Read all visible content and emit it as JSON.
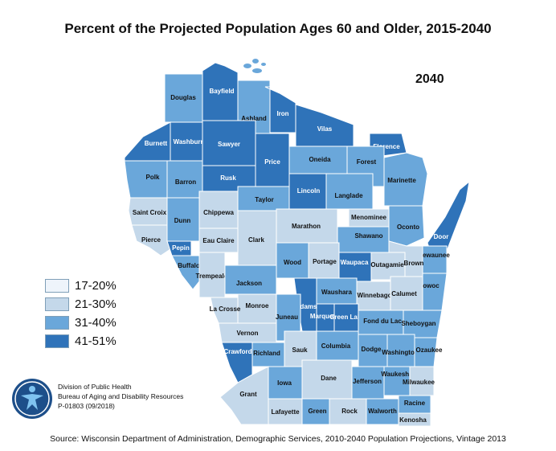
{
  "title": "Percent of the Projected Population Ages 60 and Older, 2015-2040",
  "year": "2040",
  "colors": {
    "c17_20": "#eef4fb",
    "c21_30": "#c4d8ea",
    "c31_40": "#6aa7da",
    "c41_51": "#2f73b9",
    "border": "#ffffff",
    "water_outline": "#9bb9d3"
  },
  "legend": [
    {
      "label": "17-20%",
      "color": "#eef4fb"
    },
    {
      "label": "21-30%",
      "color": "#c4d8ea"
    },
    {
      "label": "31-40%",
      "color": "#6aa7da"
    },
    {
      "label": "41-51%",
      "color": "#2f73b9"
    }
  ],
  "counties": [
    {
      "name": "Douglas",
      "cls": "c31_40"
    },
    {
      "name": "Bayfield",
      "cls": "c41_51"
    },
    {
      "name": "Ashland",
      "cls": "c31_40"
    },
    {
      "name": "Iron",
      "cls": "c41_51"
    },
    {
      "name": "Vilas",
      "cls": "c41_51"
    },
    {
      "name": "Florence",
      "cls": "c41_51"
    },
    {
      "name": "Burnett",
      "cls": "c41_51"
    },
    {
      "name": "Washburn",
      "cls": "c41_51"
    },
    {
      "name": "Sawyer",
      "cls": "c41_51"
    },
    {
      "name": "Price",
      "cls": "c41_51"
    },
    {
      "name": "Oneida",
      "cls": "c31_40"
    },
    {
      "name": "Forest",
      "cls": "c31_40"
    },
    {
      "name": "Marinette",
      "cls": "c31_40"
    },
    {
      "name": "Polk",
      "cls": "c31_40"
    },
    {
      "name": "Barron",
      "cls": "c31_40"
    },
    {
      "name": "Rusk",
      "cls": "c41_51"
    },
    {
      "name": "Lincoln",
      "cls": "c41_51"
    },
    {
      "name": "Langlade",
      "cls": "c31_40"
    },
    {
      "name": "Taylor",
      "cls": "c31_40"
    },
    {
      "name": "Saint Croix",
      "cls": "c21_30"
    },
    {
      "name": "Dunn",
      "cls": "c31_40"
    },
    {
      "name": "Chippewa",
      "cls": "c21_30"
    },
    {
      "name": "Marathon",
      "cls": "c21_30"
    },
    {
      "name": "Menominee",
      "cls": "c21_30"
    },
    {
      "name": "Oconto",
      "cls": "c31_40"
    },
    {
      "name": "Door",
      "cls": "c41_51"
    },
    {
      "name": "Shawano",
      "cls": "c31_40"
    },
    {
      "name": "Pierce",
      "cls": "c21_30"
    },
    {
      "name": "Pepin",
      "cls": "c41_51"
    },
    {
      "name": "Eau Claire",
      "cls": "c21_30"
    },
    {
      "name": "Clark",
      "cls": "c21_30"
    },
    {
      "name": "Kewaunee",
      "cls": "c31_40"
    },
    {
      "name": "Wood",
      "cls": "c31_40"
    },
    {
      "name": "Portage",
      "cls": "c21_30"
    },
    {
      "name": "Waupaca",
      "cls": "c41_51"
    },
    {
      "name": "Outagamie",
      "cls": "c21_30"
    },
    {
      "name": "Brown",
      "cls": "c21_30"
    },
    {
      "name": "Buffalo",
      "cls": "c31_40"
    },
    {
      "name": "Trempealeau",
      "cls": "c21_30"
    },
    {
      "name": "Jackson",
      "cls": "c31_40"
    },
    {
      "name": "Manitowoc",
      "cls": "c31_40"
    },
    {
      "name": "Waushara",
      "cls": "c31_40"
    },
    {
      "name": "Winnebago",
      "cls": "c21_30"
    },
    {
      "name": "Calumet",
      "cls": "c21_30"
    },
    {
      "name": "Adams",
      "cls": "c41_51"
    },
    {
      "name": "Monroe",
      "cls": "c21_30"
    },
    {
      "name": "La Crosse",
      "cls": "c21_30"
    },
    {
      "name": "Juneau",
      "cls": "c31_40"
    },
    {
      "name": "Marquette",
      "cls": "c41_51"
    },
    {
      "name": "Green Lake",
      "cls": "c41_51"
    },
    {
      "name": "Fond du Lac",
      "cls": "c31_40"
    },
    {
      "name": "Sheboygan",
      "cls": "c31_40"
    },
    {
      "name": "Vernon",
      "cls": "c21_30"
    },
    {
      "name": "Crawford",
      "cls": "c41_51"
    },
    {
      "name": "Richland",
      "cls": "c31_40"
    },
    {
      "name": "Sauk",
      "cls": "c21_30"
    },
    {
      "name": "Columbia",
      "cls": "c31_40"
    },
    {
      "name": "Dodge",
      "cls": "c31_40"
    },
    {
      "name": "Washington",
      "cls": "c31_40"
    },
    {
      "name": "Ozaukee",
      "cls": "c31_40"
    },
    {
      "name": "Grant",
      "cls": "c21_30"
    },
    {
      "name": "Iowa",
      "cls": "c31_40"
    },
    {
      "name": "Dane",
      "cls": "c21_30"
    },
    {
      "name": "Jefferson",
      "cls": "c31_40"
    },
    {
      "name": "Waukesha",
      "cls": "c31_40"
    },
    {
      "name": "Milwaukee",
      "cls": "c21_30"
    },
    {
      "name": "Lafayette",
      "cls": "c21_30"
    },
    {
      "name": "Green",
      "cls": "c31_40"
    },
    {
      "name": "Rock",
      "cls": "c21_30"
    },
    {
      "name": "Walworth",
      "cls": "c31_40"
    },
    {
      "name": "Racine",
      "cls": "c31_40"
    },
    {
      "name": "Kenosha",
      "cls": "c21_30"
    }
  ],
  "org": {
    "line1": "Division of Public Health",
    "line2": "Bureau of Aging and Disability Resources",
    "line3": "P-01803 (09/2018)"
  },
  "source": "Source:  Wisconsin Department of Administration, Demographic Services, 2010-2040 Population Projections, Vintage 2013"
}
